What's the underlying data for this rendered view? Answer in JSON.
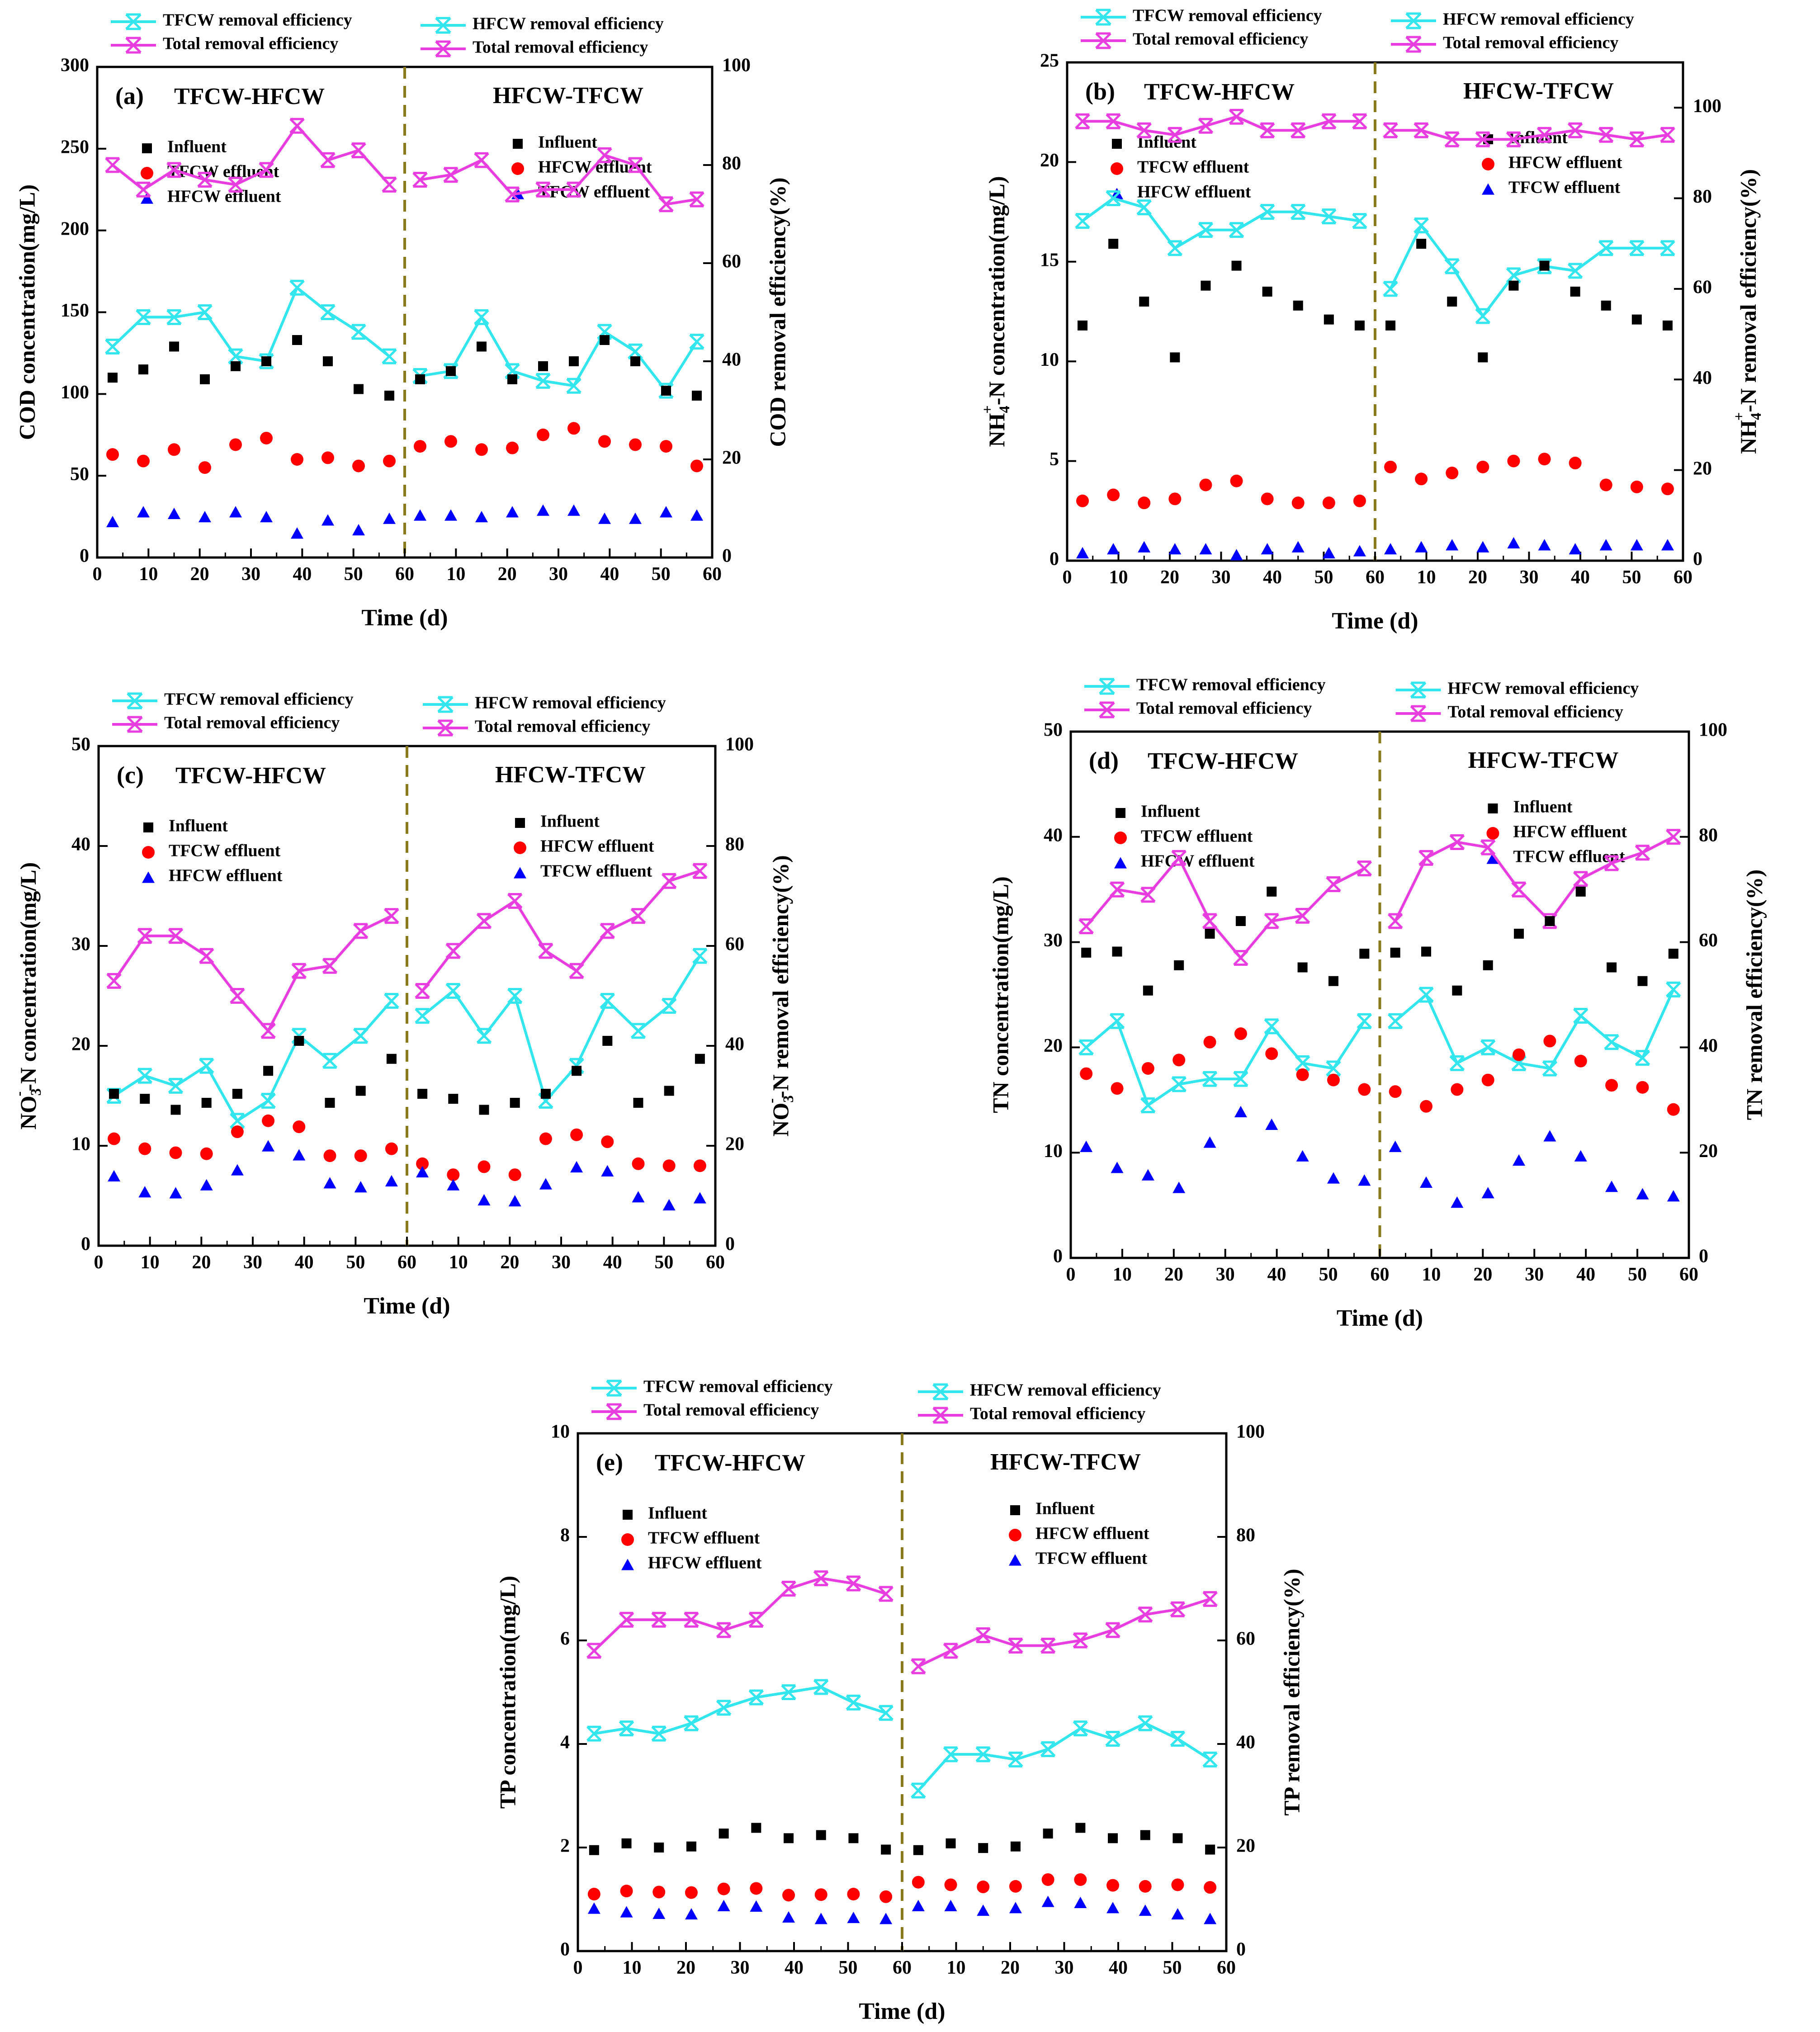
{
  "figure": {
    "colors": {
      "influent": "#000000",
      "first_effluent": "#ff0000",
      "second_effluent": "#0000ff",
      "stage_efficiency": "#33e6ee",
      "total_efficiency": "#e83ee0",
      "divider": "#8a7a1e"
    }
  },
  "chart_data": [
    {
      "type": "scatter",
      "panel_label": "(a)",
      "x": [
        3,
        9,
        15,
        21,
        27,
        33,
        39,
        45,
        51,
        57
      ],
      "xlabel": "Time (d)",
      "xlim": [
        0,
        60
      ],
      "x_ticks": [
        "0",
        "10",
        "20",
        "30",
        "40",
        "50",
        "60"
      ],
      "ylabel": "COD concentration(mg/L)",
      "ylim": [
        0,
        300
      ],
      "y_ticks": [
        "0",
        "50",
        "100",
        "150",
        "200",
        "250",
        "300"
      ],
      "y2label": "COD removal efficiency(%)",
      "y2lim": [
        0,
        100
      ],
      "y2_ticks": [
        "0",
        "20",
        "40",
        "60",
        "80",
        "100"
      ],
      "stage_labels": [
        "TFCW-HFCW",
        "HFCW-TFCW"
      ],
      "left_legend": [
        "TFCW removal efficiency",
        "Total removal efficiency"
      ],
      "right_legend": [
        "HFCW removal efficiency",
        "Total removal efficiency"
      ],
      "left_points_legend": [
        "Influent",
        "TFCW effluent",
        "HFCW effluent"
      ],
      "right_points_legend": [
        "Influent",
        "HFCW effluent",
        "TFCW effluent"
      ],
      "stage1": {
        "influent": [
          110,
          115,
          129,
          109,
          117,
          120,
          133,
          120,
          103,
          99
        ],
        "effluent1": [
          63,
          59,
          66,
          55,
          69,
          73,
          60,
          61,
          56,
          59
        ],
        "effluent2": [
          22,
          28,
          27,
          25,
          28,
          25,
          15,
          23,
          17,
          24
        ],
        "stage_efficiency": [
          43,
          49,
          49,
          50,
          41,
          40,
          55,
          50,
          46,
          41
        ],
        "total_efficiency": [
          80,
          75,
          79,
          77,
          76,
          79,
          88,
          81,
          83,
          76
        ]
      },
      "stage2": {
        "influent": [
          109,
          114,
          129,
          109,
          117,
          120,
          133,
          120,
          102,
          99
        ],
        "effluent1": [
          68,
          71,
          66,
          67,
          75,
          79,
          71,
          69,
          68,
          56
        ],
        "effluent2": [
          26,
          26,
          25,
          28,
          29,
          29,
          24,
          24,
          28,
          26
        ],
        "stage_efficiency": [
          37,
          38,
          49,
          38,
          36,
          35,
          46,
          42,
          34,
          44
        ],
        "total_efficiency": [
          77,
          78,
          81,
          74,
          75,
          75,
          82,
          80,
          72,
          73
        ]
      }
    },
    {
      "type": "scatter",
      "panel_label": "(b)",
      "x": [
        3,
        9,
        15,
        21,
        27,
        33,
        39,
        45,
        51,
        57
      ],
      "xlabel": "Time (d)",
      "xlim": [
        0,
        60
      ],
      "x_ticks": [
        "0",
        "10",
        "20",
        "30",
        "40",
        "50",
        "60"
      ],
      "ylabel": "NH4+-N concentration(mg/L)",
      "ylim": [
        0,
        25
      ],
      "y_ticks": [
        "0",
        "5",
        "10",
        "15",
        "20",
        "25"
      ],
      "y2label": "NH4+-N removal efficiency(%)",
      "y2lim": [
        0,
        110
      ],
      "y2_ticks": [
        "0",
        "20",
        "40",
        "60",
        "80",
        "100"
      ],
      "stage_labels": [
        "TFCW-HFCW",
        "HFCW-TFCW"
      ],
      "left_legend": [
        "TFCW removal efficiency",
        "Total removal efficiency"
      ],
      "right_legend": [
        "HFCW removal efficiency",
        "Total removal efficiency"
      ],
      "left_points_legend": [
        "Influent",
        "TFCW effluent",
        "HFCW effluent"
      ],
      "right_points_legend": [
        "Influent",
        "HFCW effluent",
        "TFCW effluent"
      ],
      "stage1": {
        "influent": [
          11.8,
          15.9,
          13.0,
          10.2,
          13.8,
          14.8,
          13.5,
          12.8,
          12.1,
          11.8
        ],
        "effluent1": [
          3.0,
          3.3,
          2.9,
          3.1,
          3.8,
          4.0,
          3.1,
          2.9,
          2.9,
          3.0
        ],
        "effluent2": [
          0.4,
          0.6,
          0.7,
          0.6,
          0.6,
          0.3,
          0.6,
          0.7,
          0.4,
          0.5
        ],
        "stage_efficiency": [
          75,
          80,
          78,
          69,
          73,
          73,
          77,
          77,
          76,
          75
        ],
        "total_efficiency": [
          97,
          97,
          95,
          94,
          96,
          98,
          95,
          95,
          97,
          97
        ]
      },
      "stage2": {
        "influent": [
          11.8,
          15.9,
          13.0,
          10.2,
          13.8,
          14.8,
          13.5,
          12.8,
          12.1,
          11.8
        ],
        "effluent1": [
          4.7,
          4.1,
          4.4,
          4.7,
          5.0,
          5.1,
          4.9,
          3.8,
          3.7,
          3.6
        ],
        "effluent2": [
          0.6,
          0.7,
          0.8,
          0.7,
          0.9,
          0.8,
          0.6,
          0.8,
          0.8,
          0.8
        ],
        "stage_efficiency": [
          60,
          74,
          65,
          54,
          63,
          65,
          64,
          69,
          69,
          69
        ],
        "total_efficiency": [
          95,
          95,
          93,
          93,
          93,
          94,
          95,
          94,
          93,
          94
        ]
      }
    },
    {
      "type": "scatter",
      "panel_label": "(c)",
      "x": [
        3,
        9,
        15,
        21,
        27,
        33,
        39,
        45,
        51,
        57
      ],
      "xlabel": "Time (d)",
      "xlim": [
        0,
        60
      ],
      "x_ticks": [
        "0",
        "10",
        "20",
        "30",
        "40",
        "50",
        "60"
      ],
      "ylabel": "NO3--N concentration(mg/L)",
      "ylim": [
        0,
        50
      ],
      "y_ticks": [
        "0",
        "10",
        "20",
        "30",
        "40",
        "50"
      ],
      "y2label": "NO3--N removal efficiency(%)",
      "y2lim": [
        0,
        100
      ],
      "y2_ticks": [
        "0",
        "20",
        "40",
        "60",
        "80",
        "100"
      ],
      "stage_labels": [
        "TFCW-HFCW",
        "HFCW-TFCW"
      ],
      "left_legend": [
        "TFCW removal efficiency",
        "Total removal efficiency"
      ],
      "right_legend": [
        "HFCW removal efficiency",
        "Total removal efficiency"
      ],
      "left_points_legend": [
        "Influent",
        "TFCW effluent",
        "HFCW effluent"
      ],
      "right_points_legend": [
        "Influent",
        "HFCW effluent",
        "TFCW effluent"
      ],
      "stage1": {
        "influent": [
          15.2,
          14.7,
          13.6,
          14.3,
          15.2,
          17.5,
          20.5,
          14.3,
          15.5,
          18.7
        ],
        "effluent1": [
          10.7,
          9.7,
          9.3,
          9.2,
          11.4,
          12.5,
          11.9,
          9.0,
          9.0,
          9.7
        ],
        "effluent2": [
          7.0,
          5.4,
          5.3,
          6.1,
          7.6,
          10.0,
          9.1,
          6.3,
          5.9,
          6.5
        ],
        "stage_efficiency": [
          30,
          34,
          32,
          36,
          25,
          29,
          42,
          37,
          42,
          49
        ],
        "total_efficiency": [
          53,
          62,
          62,
          58,
          50,
          43,
          55,
          56,
          63,
          66
        ]
      },
      "stage2": {
        "influent": [
          15.2,
          14.7,
          13.6,
          14.3,
          15.2,
          17.5,
          20.5,
          14.3,
          15.5,
          18.7
        ],
        "effluent1": [
          8.2,
          7.1,
          7.9,
          7.1,
          10.7,
          11.1,
          10.4,
          8.2,
          8.0,
          8.0
        ],
        "effluent2": [
          7.4,
          6.1,
          4.6,
          4.5,
          6.2,
          7.9,
          7.5,
          4.9,
          4.1,
          4.8
        ],
        "stage_efficiency": [
          46,
          51,
          42,
          50,
          29,
          36,
          49,
          43,
          48,
          58
        ],
        "total_efficiency": [
          51,
          59,
          65,
          69,
          59,
          55,
          63,
          66,
          73,
          75
        ]
      }
    },
    {
      "type": "scatter",
      "panel_label": "(d)",
      "x": [
        3,
        9,
        15,
        21,
        27,
        33,
        39,
        45,
        51,
        57
      ],
      "xlabel": "Time (d)",
      "xlim": [
        0,
        60
      ],
      "x_ticks": [
        "0",
        "10",
        "20",
        "30",
        "40",
        "50",
        "60"
      ],
      "ylabel": "TN concentration(mg/L)",
      "ylim": [
        0,
        50
      ],
      "y_ticks": [
        "0",
        "10",
        "20",
        "30",
        "40",
        "50"
      ],
      "y2label": "TN removal efficiency(%)",
      "y2lim": [
        0,
        100
      ],
      "y2_ticks": [
        "0",
        "20",
        "40",
        "60",
        "80",
        "100"
      ],
      "stage_labels": [
        "TFCW-HFCW",
        "HFCW-TFCW"
      ],
      "left_legend": [
        "TFCW removal efficiency",
        "Total removal efficiency"
      ],
      "right_legend": [
        "HFCW removal efficiency",
        "Total removal efficiency"
      ],
      "left_points_legend": [
        "Influent",
        "TFCW effluent",
        "HFCW effluent"
      ],
      "right_points_legend": [
        "Influent",
        "HFCW effluent",
        "TFCW effluent"
      ],
      "stage1": {
        "influent": [
          29.0,
          29.1,
          25.4,
          27.8,
          30.8,
          32.0,
          34.8,
          27.6,
          26.3,
          28.9
        ],
        "effluent1": [
          17.5,
          16.1,
          18.0,
          18.8,
          20.5,
          21.3,
          19.4,
          17.4,
          16.9,
          16.0
        ],
        "effluent2": [
          10.6,
          8.6,
          7.9,
          6.7,
          11.0,
          13.9,
          12.7,
          9.7,
          7.6,
          7.4
        ],
        "stage_efficiency": [
          40,
          45,
          29,
          33,
          34,
          34,
          44,
          37,
          36,
          45
        ],
        "total_efficiency": [
          63,
          70,
          69,
          76,
          64,
          57,
          64,
          65,
          71,
          74
        ]
      },
      "stage2": {
        "influent": [
          29.0,
          29.1,
          25.4,
          27.8,
          30.8,
          32.0,
          34.8,
          27.6,
          26.3,
          28.9
        ],
        "effluent1": [
          15.8,
          14.4,
          16.0,
          16.9,
          19.3,
          20.6,
          18.7,
          16.4,
          16.2,
          14.1
        ],
        "effluent2": [
          10.6,
          7.2,
          5.3,
          6.2,
          9.3,
          11.6,
          9.7,
          6.8,
          6.1,
          5.9
        ],
        "stage_efficiency": [
          45,
          50,
          37,
          40,
          37,
          36,
          46,
          41,
          38,
          51
        ],
        "total_efficiency": [
          64,
          76,
          79,
          78,
          70,
          64,
          72,
          75,
          77,
          80
        ]
      }
    },
    {
      "type": "scatter",
      "panel_label": "(e)",
      "x": [
        3,
        9,
        15,
        21,
        27,
        33,
        39,
        45,
        51,
        57
      ],
      "xlabel": "Time (d)",
      "xlim": [
        0,
        60
      ],
      "x_ticks": [
        "0",
        "10",
        "20",
        "30",
        "40",
        "50",
        "60"
      ],
      "ylabel": "TP concentration(mg/L)",
      "ylim": [
        0,
        10
      ],
      "y_ticks": [
        "0",
        "2",
        "4",
        "6",
        "8",
        "10"
      ],
      "y2label": "TP removal efficiency(%)",
      "y2lim": [
        0,
        100
      ],
      "y2_ticks": [
        "0",
        "20",
        "40",
        "60",
        "80",
        "100"
      ],
      "stage_labels": [
        "TFCW-HFCW",
        "HFCW-TFCW"
      ],
      "left_legend": [
        "TFCW removal efficiency",
        "Total removal efficiency"
      ],
      "right_legend": [
        "HFCW removal efficiency",
        "Total removal efficiency"
      ],
      "left_points_legend": [
        "Influent",
        "TFCW effluent",
        "HFCW effluent"
      ],
      "right_points_legend": [
        "Influent",
        "HFCW effluent",
        "TFCW effluent"
      ],
      "stage1": {
        "influent": [
          1.95,
          2.08,
          2.0,
          2.02,
          2.27,
          2.38,
          2.18,
          2.24,
          2.18,
          1.96
        ],
        "effluent1": [
          1.1,
          1.16,
          1.14,
          1.13,
          1.2,
          1.21,
          1.08,
          1.09,
          1.1,
          1.05
        ],
        "effluent2": [
          0.83,
          0.76,
          0.73,
          0.72,
          0.88,
          0.87,
          0.66,
          0.63,
          0.65,
          0.63
        ],
        "stage_efficiency": [
          42,
          43,
          42,
          44,
          47,
          49,
          50,
          51,
          48,
          46
        ],
        "total_efficiency": [
          58,
          64,
          64,
          64,
          62,
          64,
          70,
          72,
          71,
          69
        ]
      },
      "stage2": {
        "influent": [
          1.95,
          2.08,
          1.99,
          2.02,
          2.27,
          2.38,
          2.18,
          2.24,
          2.18,
          1.96
        ],
        "effluent1": [
          1.33,
          1.28,
          1.24,
          1.25,
          1.38,
          1.38,
          1.27,
          1.25,
          1.28,
          1.23
        ],
        "effluent2": [
          0.88,
          0.88,
          0.79,
          0.84,
          0.96,
          0.94,
          0.84,
          0.79,
          0.72,
          0.63
        ],
        "stage_efficiency": [
          31,
          38,
          38,
          37,
          39,
          43,
          41,
          44,
          41,
          37
        ],
        "total_efficiency": [
          55,
          58,
          61,
          59,
          59,
          60,
          62,
          65,
          66,
          68
        ]
      }
    }
  ]
}
